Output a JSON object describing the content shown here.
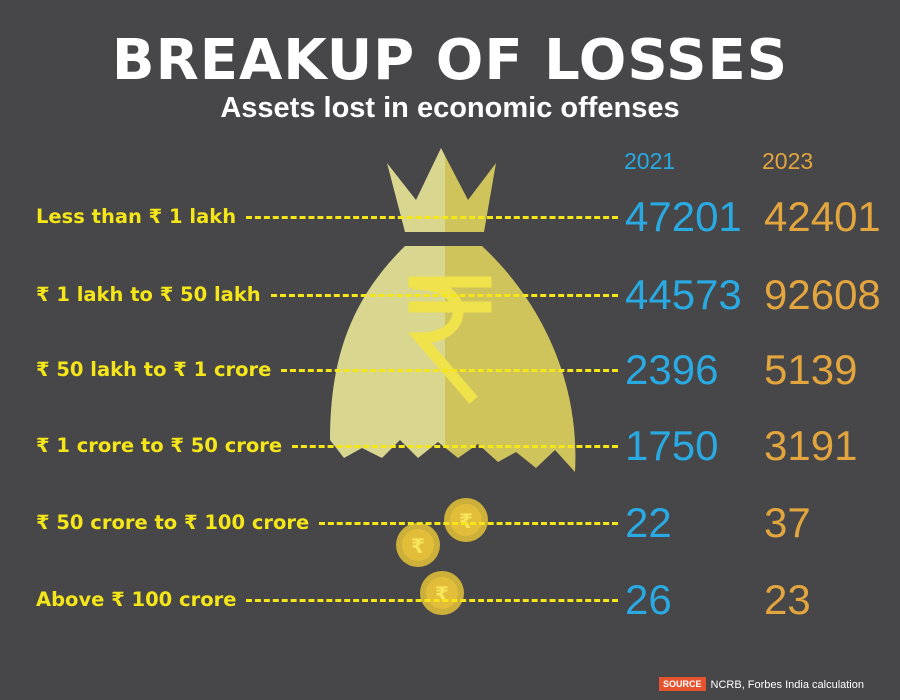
{
  "title": "BREAKUP OF LOSSES",
  "subtitle": "Assets lost in economic offenses",
  "colors": {
    "background": "#474648",
    "category_text": "#f5e61a",
    "year_2021": "#29aae2",
    "year_2023": "#e3a53e",
    "bag": "#dcd88a",
    "coin": "#e2bd3a"
  },
  "icons": [
    "money-bag-icon",
    "rupee-icon",
    "coin-icon"
  ],
  "chart_data": {
    "type": "table",
    "columns": [
      "2021",
      "2023"
    ],
    "rows": [
      {
        "category": "Less than ₹ 1 lakh",
        "values": [
          "47201",
          "42401"
        ]
      },
      {
        "category": "₹ 1 lakh to ₹ 50 lakh",
        "values": [
          "44573",
          "92608"
        ]
      },
      {
        "category": "₹ 50 lakh to ₹ 1 crore",
        "values": [
          "2396",
          "5139"
        ]
      },
      {
        "category": "₹ 1 crore to ₹ 50 crore",
        "values": [
          "1750",
          "3191"
        ]
      },
      {
        "category": "₹ 50 crore to ₹ 100 crore",
        "values": [
          "22",
          "37"
        ]
      },
      {
        "category": "Above ₹ 100 crore",
        "values": [
          "26",
          "23"
        ]
      }
    ]
  },
  "source": {
    "label": "SOURCE",
    "text": "NCRB, Forbes India calculation"
  }
}
